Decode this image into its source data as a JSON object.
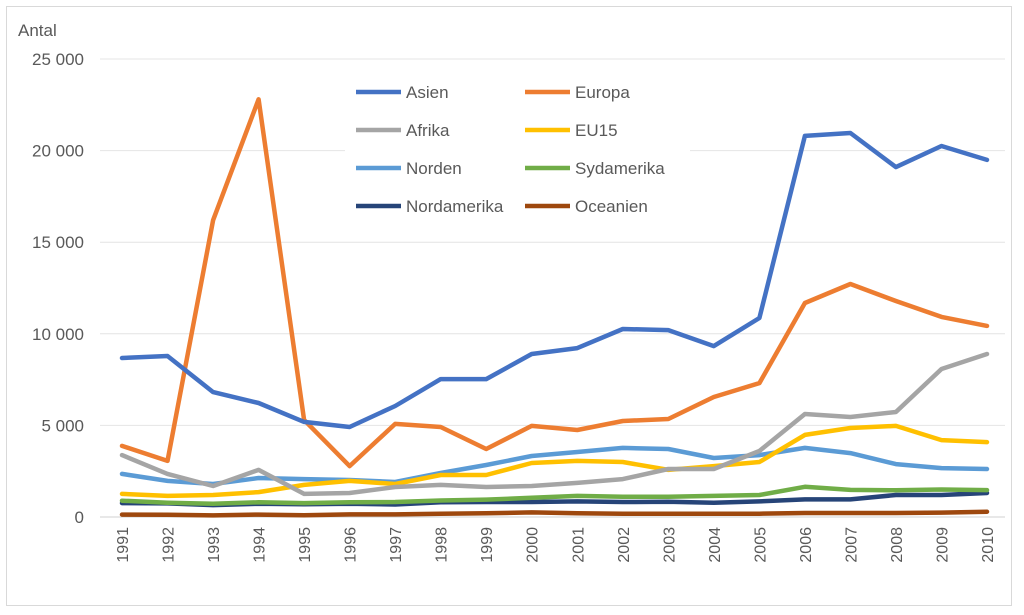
{
  "chart_data": {
    "type": "line",
    "title": "",
    "ylabel": "Antal",
    "xlabel": "",
    "ylim": [
      0,
      25000
    ],
    "yticks": [
      0,
      5000,
      10000,
      15000,
      20000,
      25000
    ],
    "ytick_labels": [
      "0",
      "5 000",
      "10 000",
      "15 000",
      "20 000",
      "25 000"
    ],
    "grid": true,
    "legend_placement": "top-center",
    "categories": [
      "1991",
      "1992",
      "1993",
      "1994",
      "1995",
      "1996",
      "1997",
      "1998",
      "1999",
      "2000",
      "2001",
      "2002",
      "2003",
      "2004",
      "2005",
      "2006",
      "2007",
      "2008",
      "2009",
      "2010"
    ],
    "series": [
      {
        "name": "Asien",
        "color": "#4472C4",
        "values": [
          8680,
          8790,
          6820,
          6220,
          5190,
          4910,
          6060,
          7530,
          7530,
          8900,
          9220,
          10260,
          10200,
          9330,
          10860,
          20800,
          20960,
          19100,
          20250,
          19490
        ]
      },
      {
        "name": "Europa",
        "color": "#ED7D31",
        "values": [
          3880,
          3060,
          16200,
          22800,
          5300,
          2780,
          5080,
          4910,
          3710,
          4970,
          4750,
          5240,
          5350,
          6550,
          7310,
          11680,
          12720,
          11790,
          10920,
          10430
        ]
      },
      {
        "name": "Afrika",
        "color": "#A5A5A5",
        "values": [
          3380,
          2350,
          1690,
          2570,
          1260,
          1310,
          1640,
          1750,
          1640,
          1690,
          1860,
          2070,
          2620,
          2620,
          3600,
          5620,
          5460,
          5730,
          8080,
          8900
        ]
      },
      {
        "name": "EU15",
        "color": "#FFC000",
        "values": [
          1260,
          1150,
          1200,
          1360,
          1750,
          1970,
          1800,
          2290,
          2290,
          2950,
          3060,
          3000,
          2570,
          2780,
          3000,
          4480,
          4860,
          4970,
          4200,
          4090
        ]
      },
      {
        "name": "Norden",
        "color": "#5B9BD5",
        "values": [
          2350,
          1970,
          1800,
          2130,
          2070,
          2020,
          1910,
          2400,
          2840,
          3330,
          3550,
          3770,
          3710,
          3220,
          3380,
          3770,
          3490,
          2890,
          2670,
          2620
        ]
      },
      {
        "name": "Sydamerika",
        "color": "#70AD47",
        "values": [
          890,
          780,
          720,
          800,
          760,
          800,
          820,
          900,
          950,
          1050,
          1150,
          1100,
          1100,
          1150,
          1200,
          1650,
          1480,
          1460,
          1500,
          1470
        ]
      },
      {
        "name": "Nordamerika",
        "color": "#264478",
        "values": [
          760,
          740,
          650,
          720,
          700,
          720,
          680,
          800,
          820,
          820,
          850,
          820,
          830,
          780,
          850,
          960,
          960,
          1200,
          1200,
          1310
        ]
      },
      {
        "name": "Oceanien",
        "color": "#9E480E",
        "values": [
          130,
          120,
          90,
          130,
          100,
          140,
          140,
          180,
          200,
          250,
          200,
          180,
          180,
          180,
          180,
          220,
          220,
          220,
          240,
          290
        ]
      }
    ]
  }
}
